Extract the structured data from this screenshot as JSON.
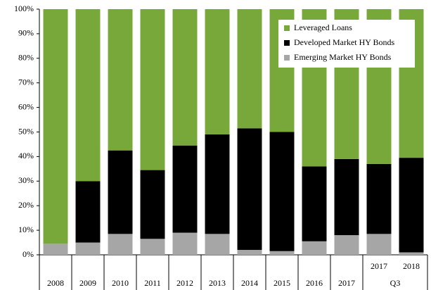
{
  "chart_data": {
    "type": "stacked_bar",
    "categories": [
      "2008",
      "2009",
      "2010",
      "2011",
      "2012",
      "2013",
      "2014",
      "2015",
      "2016",
      "2017",
      "2017",
      "2018"
    ],
    "x_group_label": "Q3",
    "series": [
      {
        "name": "Leveraged Loans",
        "color": "#78a83a",
        "values": [
          95.5,
          70,
          57.5,
          65.5,
          55.5,
          51,
          48.5,
          50,
          64,
          61,
          63,
          60.5
        ]
      },
      {
        "name": "Developed Market HY Bonds",
        "color": "#000000",
        "values": [
          0,
          25,
          34,
          28,
          35.5,
          40.5,
          49.5,
          48.5,
          30.5,
          31,
          28.5,
          38.5
        ]
      },
      {
        "name": "Emerging Market HY Bonds",
        "color": "#a6a6a6",
        "values": [
          4.5,
          5,
          8.5,
          6.5,
          9,
          8.5,
          2,
          1.5,
          5.5,
          8,
          8.5,
          1
        ]
      }
    ],
    "ylim": [
      0,
      100
    ],
    "yticks": [
      {
        "value": 0,
        "label": "0%"
      },
      {
        "value": 10,
        "label": "10%"
      },
      {
        "value": 20,
        "label": "20%"
      },
      {
        "value": 30,
        "label": "30%"
      },
      {
        "value": 40,
        "label": "40%"
      },
      {
        "value": 50,
        "label": "50%"
      },
      {
        "value": 60,
        "label": "60%"
      },
      {
        "value": 70,
        "label": "70%"
      },
      {
        "value": 80,
        "label": "80%"
      },
      {
        "value": 90,
        "label": "90%"
      },
      {
        "value": 100,
        "label": "100%"
      }
    ],
    "legend": "upper right"
  }
}
